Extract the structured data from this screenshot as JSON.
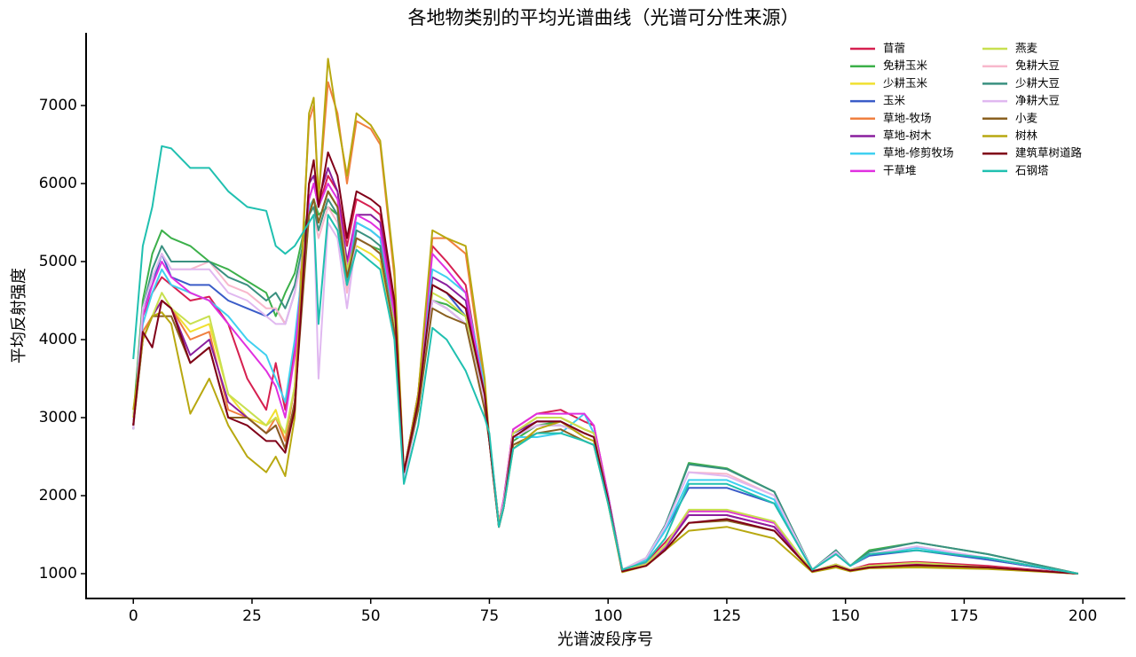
{
  "chart_data": {
    "type": "line",
    "title": "各地物类别的平均光谱曲线（光谱可分性来源）",
    "x_label": "光谱波段序号",
    "y_label": "平均反射强度",
    "x": [
      0,
      2,
      4,
      6,
      8,
      12,
      16,
      20,
      24,
      28,
      30,
      32,
      34,
      37,
      38,
      39,
      41,
      43,
      45,
      47,
      50,
      52,
      55,
      57,
      60,
      63,
      66,
      70,
      74,
      75,
      77,
      78,
      80,
      85,
      90,
      95,
      97,
      100,
      103,
      108,
      112,
      117,
      125,
      135,
      143,
      148,
      151,
      155,
      165,
      180,
      199
    ],
    "xlim": [
      -9.95,
      208.95
    ],
    "ylim": [
      682,
      7932
    ],
    "xticks": [
      0,
      25,
      50,
      75,
      100,
      125,
      150,
      175,
      200
    ],
    "yticks": [
      1000,
      2000,
      3000,
      4000,
      5000,
      6000,
      7000
    ],
    "grid": false,
    "legend": "upper right",
    "legend_columns": 2,
    "series": [
      {
        "name": "苜蓿",
        "color": "#d62050",
        "values": [
          2900,
          4300,
          4600,
          4800,
          4700,
          4500,
          4550,
          4200,
          3500,
          3100,
          3700,
          3100,
          3900,
          5800,
          6000,
          5700,
          6100,
          5900,
          5200,
          5800,
          5700,
          5600,
          4400,
          2300,
          3300,
          5200,
          5000,
          4700,
          3300,
          2750,
          1650,
          1950,
          2850,
          3050,
          3100,
          2950,
          2900,
          2000,
          1050,
          1150,
          1400,
          1750,
          1750,
          1600,
          1030,
          1120,
          1050,
          1120,
          1150,
          1100,
          1000
        ]
      },
      {
        "name": "免耕玉米",
        "color": "#3cb04a",
        "values": [
          3000,
          4500,
          5100,
          5400,
          5300,
          5200,
          5000,
          4900,
          4750,
          4600,
          4300,
          4600,
          4850,
          5700,
          5800,
          5600,
          5700,
          5600,
          4800,
          5300,
          5200,
          5150,
          4200,
          2300,
          3100,
          4500,
          4450,
          4300,
          3200,
          2700,
          1650,
          1900,
          2700,
          2900,
          2950,
          2800,
          2750,
          1950,
          1050,
          1200,
          1600,
          2420,
          2350,
          2050,
          1050,
          1300,
          1100,
          1300,
          1400,
          1250,
          1000
        ]
      },
      {
        "name": "少耕玉米",
        "color": "#f0e030",
        "values": [
          3000,
          4100,
          4300,
          4500,
          4400,
          4100,
          4200,
          3300,
          3000,
          2900,
          3100,
          2700,
          3400,
          5600,
          5800,
          5500,
          5900,
          5700,
          4900,
          5200,
          5100,
          5000,
          4100,
          2300,
          3100,
          4700,
          4600,
          4400,
          3200,
          2700,
          1650,
          1900,
          2800,
          3000,
          3000,
          2850,
          2800,
          1950,
          1040,
          1120,
          1350,
          1800,
          1800,
          1650,
          1030,
          1120,
          1050,
          1100,
          1130,
          1080,
          1000
        ]
      },
      {
        "name": "玉米",
        "color": "#3a5cc8",
        "values": [
          2900,
          4400,
          4700,
          5100,
          4800,
          4700,
          4700,
          4500,
          4400,
          4300,
          4400,
          4200,
          4600,
          5600,
          5800,
          5500,
          5900,
          5700,
          4800,
          5500,
          5400,
          5300,
          4200,
          2300,
          3200,
          4700,
          4600,
          4300,
          3200,
          2700,
          1650,
          1900,
          2800,
          2950,
          2950,
          2800,
          2750,
          1950,
          1050,
          1180,
          1550,
          2100,
          2100,
          1900,
          1050,
          1250,
          1100,
          1230,
          1300,
          1180,
          1000
        ]
      },
      {
        "name": "草地-牧场",
        "color": "#f08040",
        "values": [
          2900,
          4100,
          4300,
          4500,
          4400,
          4000,
          4100,
          3100,
          3000,
          2800,
          3000,
          2700,
          3400,
          6800,
          7000,
          5800,
          7300,
          6900,
          6000,
          6800,
          6700,
          6500,
          4800,
          2300,
          3300,
          5300,
          5300,
          5100,
          3400,
          2700,
          1650,
          1900,
          2800,
          3000,
          3000,
          2850,
          2800,
          1950,
          1040,
          1120,
          1350,
          1800,
          1800,
          1650,
          1030,
          1120,
          1050,
          1100,
          1130,
          1080,
          1000
        ]
      },
      {
        "name": "草地-树木",
        "color": "#8a1e9e",
        "values": [
          2900,
          4000,
          4300,
          4500,
          4400,
          3800,
          4000,
          3200,
          3000,
          2800,
          2900,
          2600,
          3200,
          6000,
          6100,
          5800,
          6200,
          5900,
          5000,
          5600,
          5600,
          5500,
          4300,
          2300,
          3200,
          4800,
          4700,
          4500,
          3300,
          2700,
          1650,
          1900,
          2800,
          2950,
          2950,
          2800,
          2750,
          1950,
          1040,
          1120,
          1330,
          1750,
          1750,
          1600,
          1030,
          1110,
          1040,
          1090,
          1120,
          1080,
          1000
        ]
      },
      {
        "name": "草地-修剪牧场",
        "color": "#40d0f0",
        "values": [
          2900,
          4200,
          4600,
          4900,
          4700,
          4600,
          4500,
          4300,
          4000,
          3800,
          3500,
          3200,
          4000,
          5700,
          5800,
          5500,
          5900,
          5700,
          4800,
          5500,
          5400,
          5300,
          4200,
          2300,
          3300,
          4900,
          4800,
          4600,
          3400,
          2700,
          1650,
          1900,
          2750,
          2750,
          2800,
          3050,
          2800,
          2000,
          1050,
          1180,
          1550,
          2200,
          2200,
          1950,
          1050,
          1280,
          1100,
          1250,
          1330,
          1200,
          1000
        ]
      },
      {
        "name": "干草堆",
        "color": "#e030e0",
        "values": [
          2900,
          4300,
          4700,
          5000,
          4800,
          4600,
          4500,
          4200,
          3900,
          3600,
          3400,
          3000,
          3800,
          5800,
          6000,
          5700,
          6000,
          5800,
          4900,
          5600,
          5500,
          5400,
          4300,
          2300,
          3300,
          5100,
          4900,
          4600,
          3300,
          2700,
          1650,
          1950,
          2850,
          3050,
          3050,
          3050,
          2900,
          2000,
          1040,
          1130,
          1350,
          1800,
          1800,
          1650,
          1030,
          1120,
          1050,
          1100,
          1130,
          1080,
          1000
        ]
      },
      {
        "name": "燕麦",
        "color": "#c8e050",
        "values": [
          2900,
          4000,
          4300,
          4600,
          4400,
          4200,
          4300,
          3300,
          3100,
          2900,
          3000,
          2800,
          3400,
          5600,
          5800,
          5500,
          5900,
          5700,
          4900,
          5300,
          5200,
          5100,
          4200,
          2300,
          3100,
          4600,
          4500,
          4300,
          3200,
          2700,
          1650,
          1900,
          2800,
          3000,
          3000,
          2850,
          2800,
          1950,
          1040,
          1120,
          1360,
          1820,
          1820,
          1670,
          1030,
          1120,
          1050,
          1100,
          1140,
          1080,
          1000
        ]
      },
      {
        "name": "免耕大豆",
        "color": "#f8b8cc",
        "values": [
          2850,
          4400,
          4800,
          5100,
          4900,
          4900,
          5000,
          4700,
          4600,
          4400,
          4400,
          4200,
          4600,
          5500,
          5600,
          5300,
          5700,
          5500,
          4600,
          5300,
          5200,
          5100,
          4100,
          2200,
          3100,
          4500,
          4400,
          4200,
          3200,
          2700,
          1600,
          1900,
          2750,
          2900,
          2900,
          2800,
          2750,
          1950,
          1050,
          1200,
          1600,
          2300,
          2280,
          2000,
          1050,
          1280,
          1100,
          1250,
          1350,
          1200,
          1000
        ]
      },
      {
        "name": "少耕大豆",
        "color": "#3a9080",
        "values": [
          2850,
          4400,
          4900,
          5200,
          5000,
          5000,
          5000,
          4800,
          4700,
          4500,
          4600,
          4400,
          4700,
          5600,
          5700,
          5400,
          5800,
          5600,
          4700,
          5400,
          5300,
          5200,
          4100,
          2200,
          3100,
          4500,
          4400,
          4200,
          3200,
          2700,
          1600,
          1900,
          2750,
          2900,
          2900,
          2800,
          2750,
          1950,
          1050,
          1200,
          1620,
          2400,
          2340,
          2050,
          1050,
          1300,
          1100,
          1280,
          1400,
          1250,
          1000
        ]
      },
      {
        "name": "净耕大豆",
        "color": "#e0b8f0",
        "values": [
          2850,
          4400,
          4800,
          5100,
          4900,
          4900,
          4900,
          4600,
          4500,
          4300,
          4200,
          4200,
          4600,
          5500,
          5600,
          3500,
          5500,
          5300,
          4400,
          5300,
          5200,
          5100,
          4100,
          2200,
          3100,
          4500,
          4400,
          4200,
          3200,
          2700,
          1600,
          1900,
          2750,
          2900,
          2900,
          2800,
          2750,
          1950,
          1050,
          1200,
          1600,
          2300,
          2250,
          2000,
          1050,
          1280,
          1100,
          1250,
          1350,
          1200,
          1000
        ]
      },
      {
        "name": "小麦",
        "color": "#8a6020",
        "values": [
          2900,
          4000,
          4300,
          4300,
          4300,
          3700,
          3900,
          3000,
          3000,
          2800,
          2900,
          2600,
          3200,
          5600,
          5800,
          5500,
          5900,
          5700,
          4800,
          5300,
          5200,
          5100,
          4100,
          2300,
          3100,
          4400,
          4300,
          4200,
          3100,
          2700,
          1600,
          1850,
          2650,
          2800,
          2850,
          2700,
          2650,
          1900,
          1030,
          1100,
          1300,
          1650,
          1680,
          1550,
          1030,
          1090,
          1040,
          1080,
          1100,
          1070,
          1000
        ]
      },
      {
        "name": "树林",
        "color": "#b8a810",
        "values": [
          3100,
          4000,
          4300,
          4350,
          4200,
          3050,
          3500,
          2900,
          2500,
          2300,
          2500,
          2250,
          3000,
          6900,
          7100,
          5800,
          7600,
          6800,
          6100,
          6900,
          6750,
          6550,
          4900,
          2300,
          3300,
          5400,
          5300,
          5200,
          3500,
          2700,
          1600,
          1850,
          2600,
          2850,
          2950,
          2750,
          2700,
          1900,
          1020,
          1100,
          1300,
          1550,
          1600,
          1450,
          1020,
          1080,
          1030,
          1070,
          1080,
          1060,
          1000
        ]
      },
      {
        "name": "建筑草树道路",
        "color": "#800018",
        "values": [
          2900,
          4100,
          3900,
          4500,
          4400,
          3700,
          3900,
          3000,
          2900,
          2700,
          2700,
          2550,
          3100,
          6000,
          6300,
          5700,
          6400,
          6100,
          5300,
          5900,
          5800,
          5700,
          4500,
          2300,
          3200,
          4700,
          4600,
          4400,
          3300,
          2700,
          1600,
          1850,
          2750,
          2950,
          2950,
          2800,
          2750,
          1950,
          1030,
          1100,
          1300,
          1650,
          1700,
          1550,
          1030,
          1100,
          1040,
          1080,
          1110,
          1080,
          1000
        ]
      },
      {
        "name": "石钢塔",
        "color": "#20c0b0",
        "values": [
          3750,
          5200,
          5700,
          6480,
          6450,
          6200,
          6200,
          5900,
          5700,
          5650,
          5200,
          5100,
          5200,
          5500,
          5600,
          4200,
          5600,
          5400,
          4700,
          5150,
          5000,
          4900,
          4000,
          2150,
          2900,
          4150,
          4000,
          3600,
          3000,
          2800,
          1600,
          1850,
          2600,
          2800,
          2800,
          2700,
          2650,
          1900,
          1050,
          1150,
          1450,
          2150,
          2150,
          1900,
          1050,
          1250,
          1100,
          1250,
          1300,
          1200,
          1000
        ]
      }
    ]
  }
}
